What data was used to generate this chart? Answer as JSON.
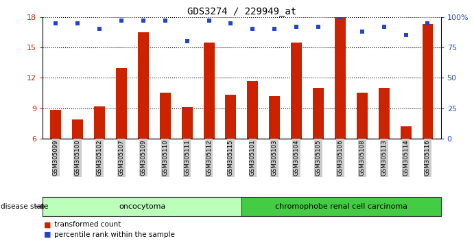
{
  "title": "GDS3274 / 229949_at",
  "categories": [
    "GSM305099",
    "GSM305100",
    "GSM305102",
    "GSM305107",
    "GSM305109",
    "GSM305110",
    "GSM305111",
    "GSM305112",
    "GSM305115",
    "GSM305101",
    "GSM305103",
    "GSM305104",
    "GSM305105",
    "GSM305106",
    "GSM305108",
    "GSM305113",
    "GSM305114",
    "GSM305116"
  ],
  "bar_values": [
    8.8,
    7.9,
    9.2,
    13.0,
    16.5,
    10.5,
    9.1,
    15.5,
    10.3,
    11.7,
    10.2,
    15.5,
    11.0,
    18.0,
    10.5,
    11.0,
    7.2,
    17.3
  ],
  "dot_values": [
    95,
    95,
    90,
    97,
    97,
    97,
    80,
    97,
    95,
    90,
    90,
    92,
    92,
    100,
    88,
    92,
    85,
    95
  ],
  "bar_color": "#cc2200",
  "dot_color": "#2244cc",
  "ylim_left": [
    6,
    18
  ],
  "ylim_right": [
    0,
    100
  ],
  "yticks_left": [
    6,
    9,
    12,
    15,
    18
  ],
  "yticks_right": [
    0,
    25,
    50,
    75,
    100
  ],
  "yticklabels_right": [
    "0",
    "25",
    "50",
    "75",
    "100%"
  ],
  "group1_label": "oncocytoma",
  "group2_label": "chromophobe renal cell carcinoma",
  "group1_count": 9,
  "group2_count": 9,
  "disease_state_label": "disease state",
  "legend_bar_label": "transformed count",
  "legend_dot_label": "percentile rank within the sample",
  "group1_color": "#bbffbb",
  "group2_color": "#44cc44",
  "tick_bg_color": "#cccccc",
  "background_color": "#ffffff"
}
